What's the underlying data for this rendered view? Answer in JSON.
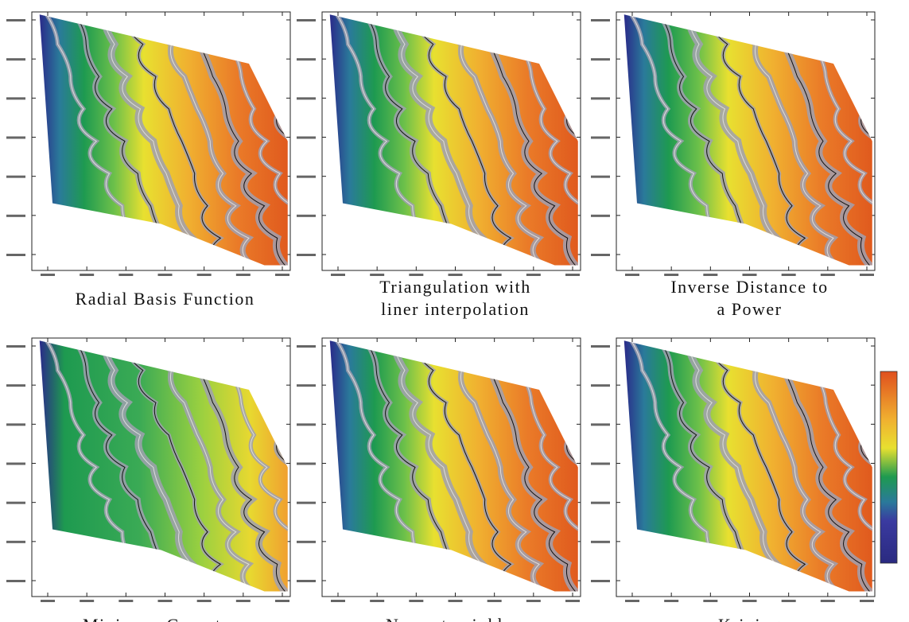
{
  "panels": [
    {
      "caption": [
        "Radial Basis Function"
      ]
    },
    {
      "caption": [
        "Triangulation with",
        "liner interpolation"
      ]
    },
    {
      "caption": [
        "Inverse Distance to",
        "a Power"
      ]
    },
    {
      "caption": [
        "Minimum Curvature"
      ]
    },
    {
      "caption": [
        "Nearest neighbor"
      ]
    },
    {
      "caption": [
        "Kriging"
      ]
    }
  ]
}
